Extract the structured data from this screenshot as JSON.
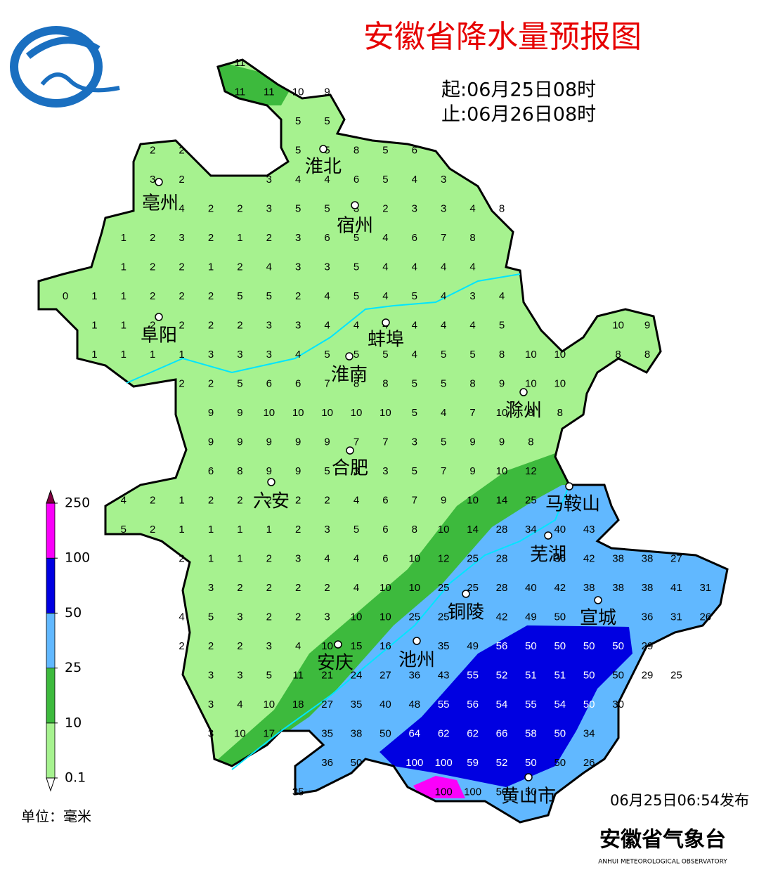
{
  "header": {
    "title": "安徽省降水量预报图",
    "start": "起:06月25日08时",
    "end": "止:06月26日08时"
  },
  "grid_rows": [
    [
      null,
      null,
      null,
      null,
      null,
      null,
      11
    ],
    [
      null,
      null,
      null,
      null,
      null,
      null,
      11,
      11,
      10,
      9
    ],
    [
      null,
      null,
      null,
      null,
      null,
      null,
      null,
      null,
      5,
      5
    ],
    [
      null,
      null,
      null,
      2,
      2,
      null,
      null,
      null,
      5,
      5,
      8,
      5,
      6
    ],
    [
      null,
      null,
      null,
      3,
      2,
      null,
      null,
      3,
      4,
      4,
      6,
      5,
      4,
      3
    ],
    [
      null,
      null,
      null,
      null,
      4,
      2,
      2,
      3,
      5,
      5,
      3,
      2,
      3,
      3,
      4,
      8
    ],
    [
      null,
      null,
      1,
      2,
      3,
      2,
      1,
      2,
      3,
      6,
      5,
      4,
      6,
      7,
      8
    ],
    [
      null,
      null,
      1,
      2,
      2,
      1,
      2,
      4,
      3,
      3,
      5,
      4,
      4,
      4,
      4
    ],
    [
      0,
      1,
      1,
      2,
      2,
      2,
      5,
      5,
      2,
      4,
      5,
      4,
      5,
      4,
      3,
      4
    ],
    [
      null,
      1,
      1,
      2,
      2,
      2,
      2,
      3,
      3,
      4,
      4,
      4,
      4,
      4,
      4,
      5,
      null,
      null,
      null,
      10,
      9
    ],
    [
      null,
      1,
      1,
      1,
      1,
      3,
      3,
      3,
      4,
      5,
      5,
      5,
      4,
      5,
      5,
      8,
      10,
      10,
      null,
      8,
      8
    ],
    [
      null,
      null,
      null,
      null,
      2,
      2,
      5,
      6,
      6,
      7,
      8,
      8,
      5,
      5,
      8,
      9,
      10,
      10
    ],
    [
      null,
      null,
      null,
      null,
      null,
      9,
      9,
      10,
      10,
      10,
      10,
      10,
      5,
      4,
      7,
      10,
      8,
      8
    ],
    [
      null,
      null,
      null,
      null,
      null,
      9,
      9,
      9,
      9,
      9,
      7,
      7,
      3,
      5,
      9,
      9,
      8
    ],
    [
      null,
      null,
      null,
      null,
      null,
      6,
      8,
      9,
      9,
      5,
      3,
      3,
      5,
      7,
      9,
      10,
      12
    ],
    [
      null,
      null,
      4,
      2,
      1,
      2,
      2,
      2,
      2,
      2,
      4,
      6,
      7,
      9,
      10,
      14,
      25
    ],
    [
      null,
      null,
      5,
      2,
      1,
      1,
      1,
      1,
      2,
      3,
      5,
      6,
      8,
      10,
      14,
      28,
      34,
      40,
      43
    ],
    [
      null,
      null,
      null,
      null,
      2,
      1,
      1,
      2,
      3,
      4,
      4,
      6,
      10,
      12,
      25,
      28,
      null,
      36,
      42,
      38,
      38,
      27
    ],
    [
      null,
      null,
      null,
      null,
      null,
      3,
      2,
      2,
      2,
      2,
      4,
      10,
      10,
      25,
      25,
      28,
      40,
      42,
      38,
      38,
      38,
      41,
      31
    ],
    [
      null,
      null,
      null,
      null,
      4,
      5,
      3,
      2,
      2,
      3,
      10,
      10,
      25,
      25,
      null,
      42,
      49,
      50,
      null,
      null,
      36,
      31,
      26
    ],
    [
      null,
      null,
      null,
      null,
      2,
      2,
      2,
      3,
      4,
      10,
      15,
      16,
      null,
      35,
      49,
      56,
      50,
      50,
      50,
      50,
      29
    ],
    [
      null,
      null,
      null,
      null,
      null,
      3,
      3,
      5,
      11,
      21,
      24,
      27,
      36,
      43,
      55,
      52,
      51,
      51,
      50,
      50,
      29,
      25
    ],
    [
      null,
      null,
      null,
      null,
      null,
      3,
      4,
      10,
      18,
      27,
      35,
      40,
      48,
      55,
      56,
      54,
      55,
      54,
      50,
      30
    ],
    [
      null,
      null,
      null,
      null,
      null,
      3,
      10,
      17,
      null,
      35,
      38,
      50,
      64,
      62,
      62,
      66,
      58,
      50,
      34
    ],
    [
      null,
      null,
      null,
      null,
      null,
      null,
      null,
      null,
      null,
      36,
      50,
      null,
      100,
      100,
      59,
      52,
      50,
      50,
      26
    ],
    [
      null,
      null,
      null,
      null,
      null,
      null,
      null,
      null,
      35,
      null,
      null,
      null,
      null,
      100,
      100,
      50,
      50
    ]
  ],
  "cities": [
    "淮北",
    "亳州",
    "宿州",
    "阜阳",
    "蚌埠",
    "淮南",
    "滁州",
    "合肥",
    "六安",
    "马鞍山",
    "芜湖",
    "铜陵",
    "宣城",
    "安庆",
    "池州",
    "黄山市"
  ],
  "legend": {
    "levels": [
      0.1,
      10,
      25,
      50,
      100,
      250
    ],
    "colors": [
      "#a6f28f",
      "#3dba3d",
      "#61b8ff",
      "#0000e1",
      "#fa00fa"
    ],
    "unit": "单位：毫米"
  },
  "footer": {
    "issued": "06月25日06:54发布",
    "agency": "安徽省气象台",
    "agency_en": "ANHUI METEOROLOGICAL OBSERVATORY"
  }
}
